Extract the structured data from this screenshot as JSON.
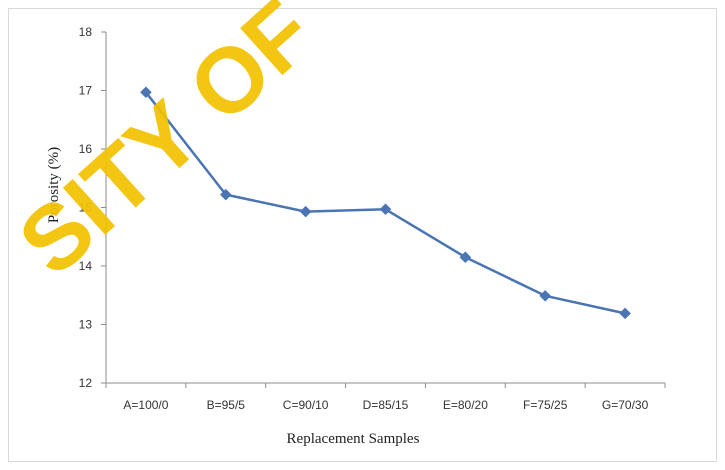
{
  "watermark": {
    "text": "SITY OF",
    "color": "#f2c200"
  },
  "chart_data": {
    "type": "line",
    "title": "",
    "xlabel": "Replacement Samples",
    "ylabel": "Porosity (%)",
    "categories": [
      "A=100/0",
      "B=95/5",
      "C=90/10",
      "D=85/15",
      "E=80/20",
      "F=75/25",
      "G=70/30"
    ],
    "series": [
      {
        "values": [
          16.97,
          15.22,
          14.93,
          14.97,
          14.15,
          13.49,
          13.19
        ],
        "color": "#4a74b4",
        "marker": "diamond"
      }
    ],
    "ylim": [
      12,
      18
    ],
    "yticks": [
      "12",
      "13",
      "14",
      "15",
      "16",
      "17",
      "18"
    ],
    "grid": false,
    "legend": "none"
  }
}
